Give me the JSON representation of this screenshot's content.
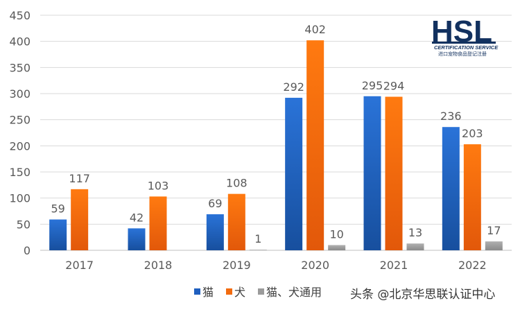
{
  "chart_data": {
    "type": "bar",
    "categories": [
      "2017",
      "2018",
      "2019",
      "2020",
      "2021",
      "2022"
    ],
    "series": [
      {
        "name": "猫",
        "values": [
          59,
          42,
          69,
          292,
          295,
          236
        ],
        "color": "#1f5fbf"
      },
      {
        "name": "犬",
        "values": [
          117,
          103,
          108,
          402,
          294,
          203
        ],
        "color": "#f26b0f"
      },
      {
        "name": "猫、犬通用",
        "values": [
          null,
          null,
          1,
          10,
          13,
          17
        ],
        "color": "#9b9b9b"
      }
    ],
    "ylim": [
      0,
      450
    ],
    "yticks": [
      0,
      50,
      100,
      150,
      200,
      250,
      300,
      350,
      400,
      450
    ],
    "grid": true,
    "legend_position": "bottom"
  },
  "logo": {
    "mark": "HSL",
    "line1": "CERTIFICATION SERVICE",
    "line2": "进口宠物食品登记注册"
  },
  "watermark": "头条 @北京华思联认证中心"
}
